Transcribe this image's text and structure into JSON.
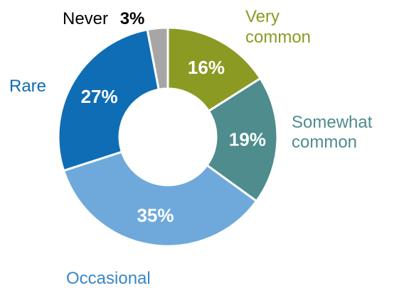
{
  "chart_data": {
    "type": "pie",
    "style": "donut",
    "start_angle_deg": 0,
    "direction": "clockwise",
    "slices": [
      {
        "label_lines": [
          "Very",
          "common"
        ],
        "value": 16,
        "value_label": "16%",
        "color": "#8b9a23",
        "label_color": "#8b9a23"
      },
      {
        "label_lines": [
          "Somewhat",
          "common"
        ],
        "value": 19,
        "value_label": "19%",
        "color": "#4e8c8e",
        "label_color": "#4e8c8e"
      },
      {
        "label_lines": [
          "Occasional"
        ],
        "value": 35,
        "value_label": "35%",
        "color": "#6fa9dc",
        "label_color": "#3a86c8"
      },
      {
        "label_lines": [
          "Rare"
        ],
        "value": 27,
        "value_label": "27%",
        "color": "#0f6db5",
        "label_color": "#0f6db5"
      },
      {
        "label_lines": [
          "Never"
        ],
        "value": 3,
        "value_label": "3%",
        "color": "#a6a6a6",
        "label_color": "#000000"
      }
    ]
  }
}
